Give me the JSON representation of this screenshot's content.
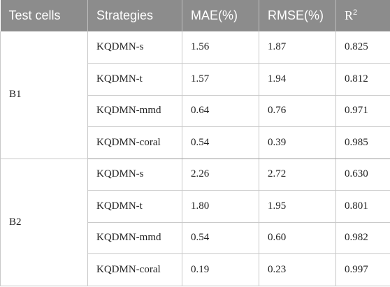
{
  "table": {
    "headers": {
      "test_cells": "Test cells",
      "strategies": "Strategies",
      "mae": "MAE(%)",
      "rmse": "RMSE(%)",
      "r2_base": "R",
      "r2_sup": "2"
    },
    "groups": [
      {
        "cell": "B1",
        "rows": [
          {
            "strategy": "KQDMN-s",
            "mae": "1.56",
            "rmse": "1.87",
            "r2": "0.825"
          },
          {
            "strategy": "KQDMN-t",
            "mae": "1.57",
            "rmse": "1.94",
            "r2": "0.812"
          },
          {
            "strategy": "KQDMN-mmd",
            "mae": "0.64",
            "rmse": "0.76",
            "r2": "0.971"
          },
          {
            "strategy": "KQDMN-coral",
            "mae": "0.54",
            "rmse": "0.39",
            "r2": "0.985"
          }
        ]
      },
      {
        "cell": "B2",
        "rows": [
          {
            "strategy": "KQDMN-s",
            "mae": "2.26",
            "rmse": "2.72",
            "r2": "0.630"
          },
          {
            "strategy": "KQDMN-t",
            "mae": "1.80",
            "rmse": "1.95",
            "r2": "0.801"
          },
          {
            "strategy": "KQDMN-mmd",
            "mae": "0.54",
            "rmse": "0.60",
            "r2": "0.982"
          },
          {
            "strategy": "KQDMN-coral",
            "mae": "0.19",
            "rmse": "0.23",
            "r2": "0.997"
          }
        ]
      }
    ]
  }
}
